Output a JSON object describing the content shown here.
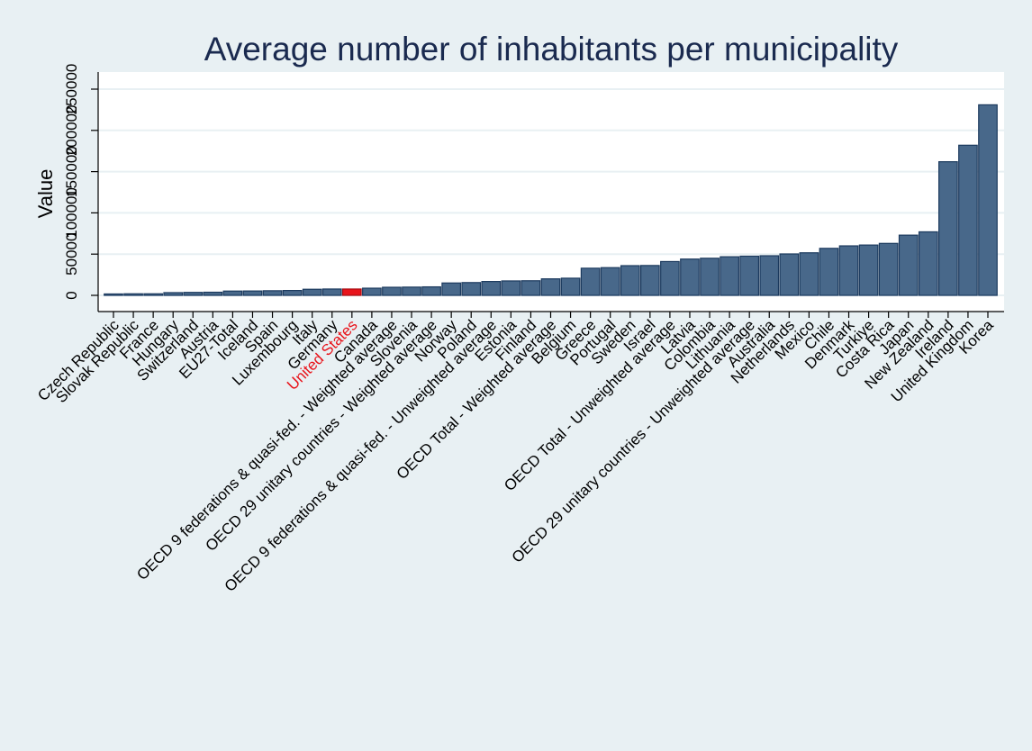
{
  "chart_data": {
    "type": "bar",
    "title": "Average number of inhabitants per municipality",
    "xlabel": "",
    "ylabel": "Value",
    "ylim": [
      0,
      250000
    ],
    "yticks": [
      0,
      50000,
      100000,
      150000,
      200000,
      250000
    ],
    "ytick_labels": [
      "0",
      "50000",
      "100000",
      "150000",
      "200000",
      "250000"
    ],
    "grid": true,
    "legend": "none",
    "highlight_category": "United States",
    "colors": {
      "bar": "#48688a",
      "bar_edge": "#1c3a5e",
      "highlight": "#e8141b",
      "highlight_edge": "#a80d12",
      "highlight_label": "#e8141b",
      "plot_background": "#ffffff",
      "page_background": "#e8f0f3",
      "grid": "#e8f0f3",
      "title": "#1a2a4f"
    },
    "categories": [
      "Czech Republic",
      "Slovak Republic",
      "France",
      "Hungary",
      "Switzerland",
      "Austria",
      "EU27-Total",
      "Iceland",
      "Spain",
      "Luxembourg",
      "Italy",
      "Germany",
      "United States",
      "Canada",
      "OECD 9 federations & quasi-fed. - Weighted average",
      "Slovenia",
      "OECD 29 unitary countries - Weighted average",
      "Norway",
      "Poland",
      "OECD 9 federations & quasi-fed. - Unweighted average",
      "Estonia",
      "Finland",
      "OECD Total - Weighted average",
      "Belgium",
      "Greece",
      "Portugal",
      "Sweden",
      "Israel",
      "OECD Total - Unweighted average",
      "Latvia",
      "Colombia",
      "Lithuania",
      "OECD 29 unitary countries - Unweighted average",
      "Australia",
      "Netherlands",
      "Mexico",
      "Chile",
      "Denmark",
      "Turkiye",
      "Costa Rica",
      "Japan",
      "New Zealand",
      "Ireland",
      "United Kingdom",
      "Korea"
    ],
    "values": [
      1700,
      1900,
      1900,
      3300,
      3600,
      3800,
      5200,
      5300,
      5600,
      5900,
      7400,
      7700,
      7700,
      8700,
      9800,
      10000,
      10300,
      15000,
      15500,
      16800,
      17500,
      17700,
      20000,
      20800,
      32900,
      33600,
      36000,
      36200,
      41000,
      44000,
      45000,
      46800,
      47500,
      48000,
      50200,
      51600,
      57000,
      60000,
      61000,
      63000,
      73000,
      77000,
      162000,
      182000,
      231000
    ]
  }
}
